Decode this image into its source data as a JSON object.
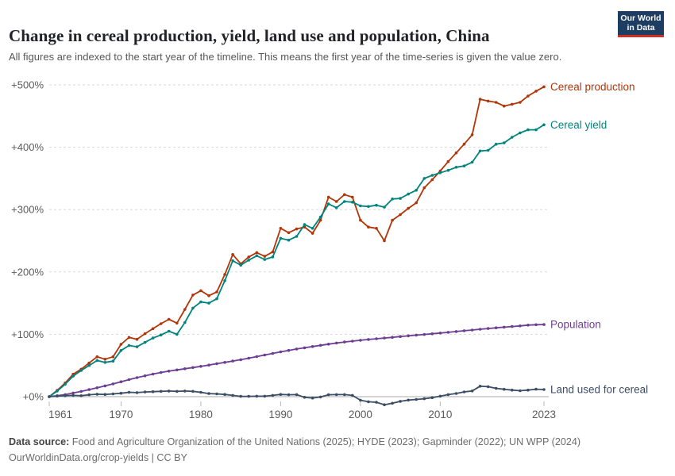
{
  "header": {
    "title": "Change in cereal production, yield, land use and population, China",
    "subtitle": "All figures are indexed to the start year of the timeline. This means the first year of the time-series is given the value zero.",
    "logo": {
      "line1": "Our World",
      "line2": "in Data",
      "bg_color": "#1d3d63",
      "bar_color": "#cf2e23"
    }
  },
  "footer": {
    "datasource_label": "Data source:",
    "datasource_text": "Food and Agriculture Organization of the United Nations (2025); HYDE (2023); Gapminder (2022); UN WPP (2024)",
    "license_line": "OurWorldinData.org/crop-yields | CC BY"
  },
  "chart_data": {
    "type": "line",
    "title": "Change in cereal production, yield, land use and population, China",
    "xlabel": "",
    "ylabel": "",
    "grid": "horizontal-dashed",
    "legend_position": "right-of-line-ends",
    "xlim": [
      1961,
      2023
    ],
    "ylim": [
      0,
      500
    ],
    "xticks": [
      1961,
      1970,
      1980,
      1990,
      2000,
      2010,
      2023
    ],
    "yticks": [
      0,
      100,
      200,
      300,
      400,
      500
    ],
    "ytick_prefix": "+",
    "ytick_suffix": "%",
    "axis_color": "#5b5b5b",
    "grid_color": "#d9d9d9",
    "zero_line_color": "#c6c6c6",
    "x": [
      1961,
      1962,
      1963,
      1964,
      1965,
      1966,
      1967,
      1968,
      1969,
      1970,
      1971,
      1972,
      1973,
      1974,
      1975,
      1976,
      1977,
      1978,
      1979,
      1980,
      1981,
      1982,
      1983,
      1984,
      1985,
      1986,
      1987,
      1988,
      1989,
      1990,
      1991,
      1992,
      1993,
      1994,
      1995,
      1996,
      1997,
      1998,
      1999,
      2000,
      2001,
      2002,
      2003,
      2004,
      2005,
      2006,
      2007,
      2008,
      2009,
      2010,
      2011,
      2012,
      2013,
      2014,
      2015,
      2016,
      2017,
      2018,
      2019,
      2020,
      2021,
      2022,
      2023
    ],
    "series": [
      {
        "name": "Cereal production",
        "color": "#b13507",
        "values": [
          0,
          10,
          22,
          36,
          44,
          54,
          64,
          60,
          64,
          84,
          95,
          92,
          101,
          109,
          117,
          124,
          118,
          140,
          163,
          170,
          162,
          168,
          196,
          228,
          213,
          224,
          231,
          225,
          232,
          270,
          263,
          269,
          272,
          262,
          283,
          320,
          313,
          324,
          320,
          283,
          272,
          270,
          250,
          283,
          292,
          302,
          311,
          335,
          348,
          362,
          377,
          391,
          405,
          420,
          477,
          474,
          472,
          466,
          469,
          472,
          482,
          490,
          497
        ]
      },
      {
        "name": "Cereal yield",
        "color": "#00847e",
        "values": [
          0,
          9,
          20,
          33,
          42,
          50,
          58,
          55,
          57,
          74,
          82,
          80,
          87,
          94,
          99,
          105,
          100,
          119,
          142,
          152,
          150,
          157,
          186,
          218,
          211,
          219,
          226,
          220,
          224,
          254,
          251,
          257,
          276,
          270,
          288,
          309,
          303,
          313,
          312,
          306,
          305,
          307,
          304,
          317,
          318,
          325,
          331,
          350,
          355,
          359,
          363,
          368,
          370,
          376,
          394,
          395,
          405,
          407,
          416,
          423,
          428,
          428,
          436
        ]
      },
      {
        "name": "Population",
        "color": "#6d3e91",
        "values": [
          0,
          1.5,
          3.3,
          5.8,
          8.4,
          11.3,
          14.2,
          17.3,
          20.5,
          23.9,
          27.3,
          30.5,
          33.5,
          36.3,
          38.8,
          41,
          42.9,
          44.8,
          46.7,
          48.6,
          50.6,
          52.9,
          55,
          57.1,
          59.3,
          61.7,
          64.2,
          66.8,
          69.4,
          71.9,
          74.2,
          76.4,
          78.4,
          80.4,
          82.3,
          84.2,
          86,
          87.6,
          89.1,
          90.5,
          91.7,
          92.9,
          94,
          95.2,
          96.4,
          97.6,
          98.7,
          99.8,
          100.9,
          102,
          103.2,
          104.5,
          105.7,
          106.9,
          108.1,
          109.3,
          110.4,
          111.4,
          112.5,
          113.5,
          114.8,
          115.4,
          115.7
        ]
      },
      {
        "name": "Land used for cereal",
        "color": "#3c4e66",
        "values": [
          0,
          1,
          1.5,
          2,
          1.5,
          3,
          4,
          3.5,
          4.5,
          5.5,
          7,
          6.5,
          7.5,
          8,
          8.5,
          9,
          8.5,
          9,
          8.5,
          7,
          5,
          4.5,
          3.5,
          2,
          0.5,
          0.5,
          0.8,
          0.8,
          2,
          3.5,
          3,
          3.3,
          -1,
          -2.2,
          -0.5,
          3,
          3.3,
          3.3,
          2,
          -5.7,
          -8.2,
          -9,
          -13,
          -10.5,
          -7.5,
          -5.5,
          -4.5,
          -3.3,
          -1.5,
          0.8,
          3.3,
          5.1,
          7.6,
          9.2,
          16.8,
          16,
          13.4,
          11.8,
          10.5,
          9.6,
          10.5,
          12,
          11.4
        ]
      }
    ]
  }
}
